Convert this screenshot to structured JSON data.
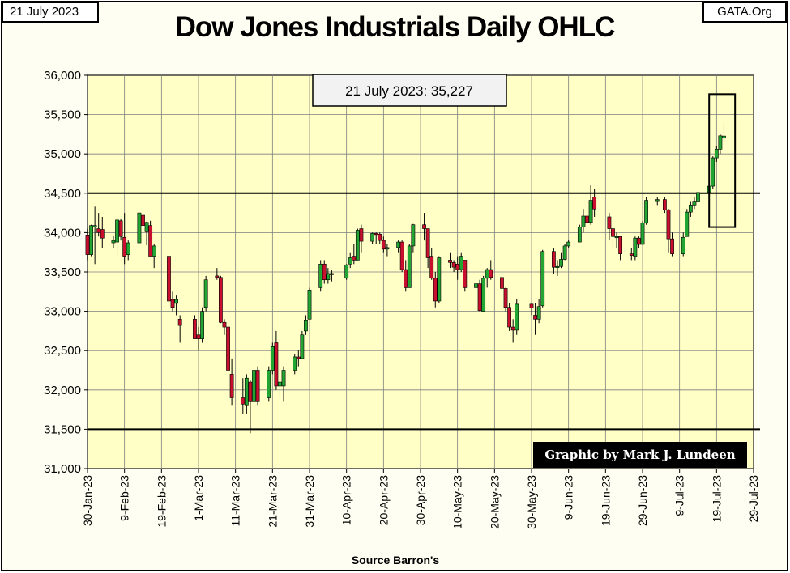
{
  "header": {
    "date_tag": "21 July 2023",
    "site_tag": "GATA.Org",
    "title": "Dow Jones Industrials Daily OHLC"
  },
  "annotation": {
    "last_close": "21 July 2023: 35,227"
  },
  "credit": "Graphic by Mark J. Lundeen",
  "source": "Source Barron's",
  "colors": {
    "up": "#22a532",
    "down": "#c8102e",
    "plot_bg": "#ffffc6",
    "grid": "#7f7f7f"
  },
  "chart_data": {
    "type": "candlestick",
    "title": "Dow Jones Industrials Daily OHLC",
    "xlabel": "Source Barron's",
    "ylabel": "",
    "x_range": [
      "2023-01-30",
      "2023-07-29"
    ],
    "ylim": [
      31000,
      36000
    ],
    "y_ticks": [
      31000,
      31500,
      32000,
      32500,
      33000,
      33500,
      34000,
      34500,
      35000,
      35500,
      36000
    ],
    "y_tick_labels": [
      "31,000",
      "31,500",
      "32,000",
      "32,500",
      "33,000",
      "33,500",
      "34,000",
      "34,500",
      "35,000",
      "35,500",
      "36,000"
    ],
    "x_ticks": [
      "2023-01-30",
      "2023-02-09",
      "2023-02-19",
      "2023-03-01",
      "2023-03-11",
      "2023-03-21",
      "2023-03-31",
      "2023-04-10",
      "2023-04-20",
      "2023-04-30",
      "2023-05-10",
      "2023-05-20",
      "2023-05-30",
      "2023-06-09",
      "2023-06-19",
      "2023-06-29",
      "2023-07-09",
      "2023-07-19",
      "2023-07-29"
    ],
    "x_tick_labels": [
      "30-Jan-23",
      "9-Feb-23",
      "19-Feb-23",
      "1-Mar-23",
      "11-Mar-23",
      "21-Mar-23",
      "31-Mar-23",
      "10-Apr-23",
      "20-Apr-23",
      "30-Apr-23",
      "10-May-23",
      "20-May-23",
      "30-May-23",
      "9-Jun-23",
      "19-Jun-23",
      "29-Jun-23",
      "9-Jul-23",
      "19-Jul-23",
      "29-Jul-23"
    ],
    "reference_lines": [
      34500,
      31500
    ],
    "highlight_box": {
      "x": [
        "2023-07-17",
        "2023-07-24"
      ],
      "y": [
        34070,
        35760
      ]
    },
    "grid": true,
    "candles": [
      [
        "2023-01-30",
        33970,
        34050,
        33650,
        33720
      ],
      [
        "2023-01-31",
        33720,
        34100,
        33700,
        34090
      ],
      [
        "2023-02-01",
        34090,
        34330,
        33600,
        34090
      ],
      [
        "2023-02-02",
        34050,
        34250,
        33950,
        34000
      ],
      [
        "2023-02-03",
        34040,
        34200,
        33800,
        33930
      ],
      [
        "2023-02-06",
        33870,
        33960,
        33800,
        33900
      ],
      [
        "2023-02-07",
        33880,
        34200,
        33700,
        34160
      ],
      [
        "2023-02-08",
        34150,
        34180,
        33900,
        33950
      ],
      [
        "2023-02-09",
        33940,
        34250,
        33600,
        33700
      ],
      [
        "2023-02-10",
        33720,
        33900,
        33650,
        33870
      ],
      [
        "2023-02-13",
        33870,
        34250,
        33870,
        34250
      ],
      [
        "2023-02-14",
        34220,
        34280,
        33780,
        34090
      ],
      [
        "2023-02-15",
        34010,
        34140,
        33840,
        34130
      ],
      [
        "2023-02-16",
        34090,
        34150,
        33700,
        33700
      ],
      [
        "2023-02-17",
        33700,
        33850,
        33550,
        33830
      ],
      [
        "2023-02-21",
        33700,
        33700,
        33100,
        33130
      ],
      [
        "2023-02-22",
        33150,
        33250,
        33000,
        33050
      ],
      [
        "2023-02-23",
        33100,
        33200,
        32950,
        33150
      ],
      [
        "2023-02-24",
        32900,
        32950,
        32600,
        32820
      ],
      [
        "2023-02-28",
        32900,
        32950,
        32650,
        32650
      ],
      [
        "2023-03-01",
        32700,
        32800,
        32500,
        32650
      ],
      [
        "2023-03-02",
        32650,
        33050,
        32600,
        33000
      ],
      [
        "2023-03-03",
        33050,
        33450,
        33000,
        33400
      ],
      [
        "2023-03-06",
        33450,
        33550,
        33400,
        33430
      ],
      [
        "2023-03-07",
        33430,
        33450,
        32850,
        32860
      ],
      [
        "2023-03-08",
        32860,
        32900,
        32700,
        32800
      ],
      [
        "2023-03-09",
        32800,
        32850,
        32200,
        32250
      ],
      [
        "2023-03-10",
        32200,
        32400,
        31800,
        31900
      ],
      [
        "2023-03-13",
        31900,
        32150,
        31700,
        31820
      ],
      [
        "2023-03-14",
        31800,
        32200,
        31700,
        32150
      ],
      [
        "2023-03-15",
        32100,
        32120,
        31450,
        31850
      ],
      [
        "2023-03-16",
        31850,
        32300,
        31600,
        32250
      ],
      [
        "2023-03-17",
        32250,
        32300,
        31800,
        31850
      ],
      [
        "2023-03-20",
        31900,
        32300,
        31850,
        32250
      ],
      [
        "2023-03-21",
        32250,
        32600,
        32200,
        32550
      ],
      [
        "2023-03-22",
        32600,
        32750,
        32000,
        32050
      ],
      [
        "2023-03-23",
        32050,
        32400,
        31900,
        32100
      ],
      [
        "2023-03-24",
        32050,
        32300,
        31850,
        32250
      ],
      [
        "2023-03-27",
        32250,
        32450,
        32200,
        32420
      ],
      [
        "2023-03-28",
        32420,
        32500,
        32300,
        32400
      ],
      [
        "2023-03-29",
        32400,
        32750,
        32400,
        32700
      ],
      [
        "2023-03-30",
        32750,
        32950,
        32700,
        32880
      ],
      [
        "2023-03-31",
        32900,
        33300,
        32900,
        33270
      ],
      [
        "2023-04-03",
        33300,
        33650,
        33250,
        33600
      ],
      [
        "2023-04-04",
        33600,
        33650,
        33350,
        33400
      ],
      [
        "2023-04-05",
        33400,
        33550,
        33350,
        33480
      ],
      [
        "2023-04-06",
        33480,
        33520,
        33380,
        33480
      ],
      [
        "2023-04-10",
        33420,
        33600,
        33400,
        33590
      ],
      [
        "2023-04-11",
        33600,
        33750,
        33550,
        33680
      ],
      [
        "2023-04-12",
        33700,
        33850,
        33600,
        33650
      ],
      [
        "2023-04-13",
        33650,
        34050,
        33650,
        34030
      ],
      [
        "2023-04-14",
        34050,
        34100,
        33750,
        33890
      ],
      [
        "2023-04-17",
        33890,
        34000,
        33850,
        33990
      ],
      [
        "2023-04-18",
        33990,
        34000,
        33850,
        33980
      ],
      [
        "2023-04-19",
        33980,
        34000,
        33850,
        33900
      ],
      [
        "2023-04-20",
        33900,
        33950,
        33750,
        33790
      ],
      [
        "2023-04-21",
        33790,
        33850,
        33700,
        33810
      ],
      [
        "2023-04-24",
        33810,
        33900,
        33750,
        33880
      ],
      [
        "2023-04-25",
        33880,
        33900,
        33500,
        33530
      ],
      [
        "2023-04-26",
        33530,
        33650,
        33250,
        33300
      ],
      [
        "2023-04-27",
        33300,
        33850,
        33300,
        33830
      ],
      [
        "2023-04-28",
        33830,
        34110,
        33750,
        34100
      ],
      [
        "2023-05-01",
        34100,
        34250,
        33900,
        34050
      ],
      [
        "2023-05-02",
        34050,
        34050,
        33550,
        33680
      ],
      [
        "2023-05-03",
        33700,
        33800,
        33400,
        33420
      ],
      [
        "2023-05-04",
        33420,
        33500,
        33050,
        33130
      ],
      [
        "2023-05-05",
        33130,
        33700,
        33100,
        33680
      ],
      [
        "2023-05-08",
        33650,
        33750,
        33550,
        33620
      ],
      [
        "2023-05-09",
        33620,
        33650,
        33500,
        33560
      ],
      [
        "2023-05-10",
        33600,
        33700,
        33400,
        33530
      ],
      [
        "2023-05-11",
        33530,
        33750,
        33500,
        33700
      ],
      [
        "2023-05-12",
        33650,
        33600,
        33250,
        33300
      ],
      [
        "2023-05-15",
        33300,
        33400,
        33250,
        33350
      ],
      [
        "2023-05-16",
        33350,
        33400,
        33000,
        33010
      ],
      [
        "2023-05-17",
        33000,
        33450,
        33000,
        33420
      ],
      [
        "2023-05-18",
        33420,
        33550,
        33300,
        33530
      ],
      [
        "2023-05-19",
        33530,
        33650,
        33400,
        33430
      ],
      [
        "2023-05-22",
        33430,
        33450,
        33250,
        33290
      ],
      [
        "2023-05-23",
        33290,
        33300,
        33000,
        33050
      ],
      [
        "2023-05-24",
        33050,
        33100,
        32750,
        32800
      ],
      [
        "2023-05-25",
        32800,
        32900,
        32600,
        32760
      ],
      [
        "2023-05-26",
        32760,
        33150,
        32700,
        33090
      ],
      [
        "2023-05-30",
        33090,
        33100,
        32950,
        33040
      ],
      [
        "2023-05-31",
        32950,
        33100,
        32700,
        32900
      ],
      [
        "2023-06-01",
        32900,
        33150,
        32850,
        33060
      ],
      [
        "2023-06-02",
        33070,
        33780,
        33050,
        33760
      ],
      [
        "2023-06-05",
        33760,
        33800,
        33480,
        33560
      ],
      [
        "2023-06-06",
        33560,
        33650,
        33450,
        33570
      ],
      [
        "2023-06-07",
        33570,
        33750,
        33550,
        33660
      ],
      [
        "2023-06-08",
        33660,
        33850,
        33650,
        33830
      ],
      [
        "2023-06-09",
        33830,
        33900,
        33800,
        33880
      ],
      [
        "2023-06-12",
        33880,
        34100,
        33880,
        34070
      ],
      [
        "2023-06-13",
        34070,
        34300,
        34000,
        34210
      ],
      [
        "2023-06-14",
        34210,
        34500,
        33800,
        34130
      ],
      [
        "2023-06-15",
        34130,
        34600,
        34100,
        34410
      ],
      [
        "2023-06-16",
        34450,
        34550,
        34200,
        34300
      ],
      [
        "2023-06-20",
        34200,
        34250,
        33900,
        34050
      ],
      [
        "2023-06-21",
        34050,
        34100,
        33800,
        33950
      ],
      [
        "2023-06-22",
        33950,
        34000,
        33800,
        33950
      ],
      [
        "2023-06-23",
        33950,
        33950,
        33650,
        33730
      ],
      [
        "2023-06-26",
        33730,
        33800,
        33650,
        33710
      ],
      [
        "2023-06-27",
        33700,
        33950,
        33650,
        33930
      ],
      [
        "2023-06-28",
        33930,
        33950,
        33800,
        33850
      ],
      [
        "2023-06-29",
        33850,
        34150,
        33850,
        34120
      ],
      [
        "2023-06-30",
        34120,
        34450,
        34100,
        34410
      ],
      [
        "2023-07-03",
        34410,
        34450,
        34350,
        34420
      ],
      [
        "2023-07-05",
        34420,
        34450,
        34250,
        34290
      ],
      [
        "2023-07-06",
        34290,
        34300,
        33750,
        33920
      ],
      [
        "2023-07-07",
        33920,
        34000,
        33700,
        33730
      ],
      [
        "2023-07-10",
        33730,
        34000,
        33700,
        33940
      ],
      [
        "2023-07-11",
        33950,
        34300,
        33950,
        34260
      ],
      [
        "2023-07-12",
        34260,
        34400,
        34200,
        34350
      ],
      [
        "2023-07-13",
        34350,
        34450,
        34300,
        34400
      ],
      [
        "2023-07-14",
        34400,
        34600,
        34350,
        34510
      ],
      [
        "2023-07-17",
        34510,
        34600,
        34450,
        34590
      ],
      [
        "2023-07-18",
        34590,
        34970,
        34550,
        34950
      ],
      [
        "2023-07-19",
        34950,
        35100,
        34900,
        35060
      ],
      [
        "2023-07-20",
        35060,
        35250,
        35000,
        35230
      ],
      [
        "2023-07-21",
        35200,
        35400,
        35150,
        35227
      ]
    ]
  }
}
